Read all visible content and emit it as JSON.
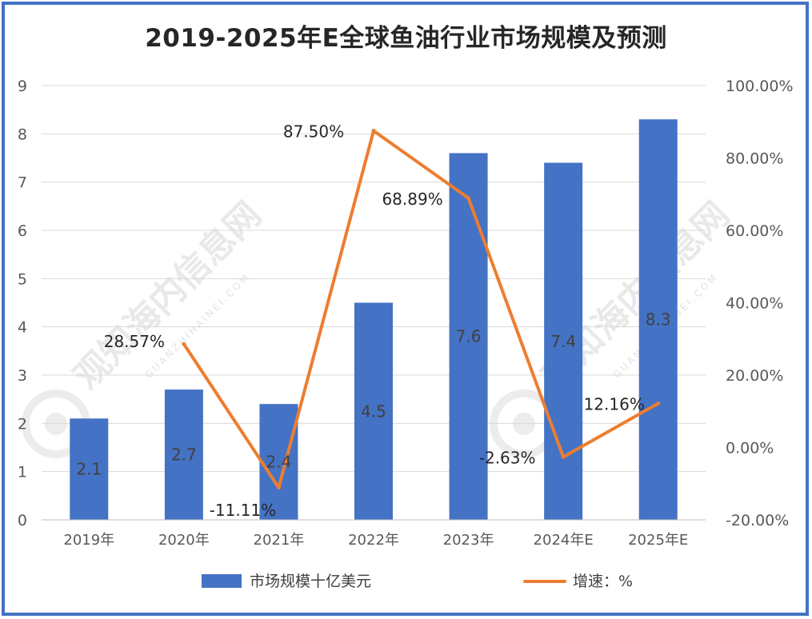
{
  "chart_data": {
    "type": "bar",
    "title": "2019-2025年E全球鱼油行业市场规模及预测",
    "categories": [
      "2019年",
      "2020年",
      "2021年",
      "2022年",
      "2023年",
      "2024年E",
      "2025年E"
    ],
    "series": [
      {
        "name": "市场规模十亿美元",
        "type": "bar",
        "axis": "left",
        "values": [
          2.1,
          2.7,
          2.4,
          4.5,
          7.6,
          7.4,
          8.3
        ],
        "labels": [
          "2.1",
          "2.7",
          "2.4",
          "4.5",
          "7.6",
          "7.4",
          "8.3"
        ],
        "color": "#4472c4"
      },
      {
        "name": "增速：%",
        "type": "line",
        "axis": "right",
        "values": [
          null,
          28.57,
          -11.11,
          87.5,
          68.89,
          -2.63,
          12.16
        ],
        "labels": [
          "",
          "28.57%",
          "-11.11%",
          "87.50%",
          "68.89%",
          "-2.63%",
          "12.16%"
        ],
        "color": "#ed7d31"
      }
    ],
    "ylim_left": [
      0,
      9
    ],
    "yticks_left": [
      "0",
      "1",
      "2",
      "3",
      "4",
      "5",
      "6",
      "7",
      "8",
      "9"
    ],
    "ylim_right": [
      -20,
      100
    ],
    "yticks_right": [
      "-20.00%",
      "0.00%",
      "20.00%",
      "40.00%",
      "60.00%",
      "80.00%",
      "100.00%"
    ],
    "grid": true,
    "legend_position": "bottom"
  },
  "watermark": {
    "text": "观知海内信息网",
    "subtext": "GUANZHIHAINEI.COM"
  }
}
